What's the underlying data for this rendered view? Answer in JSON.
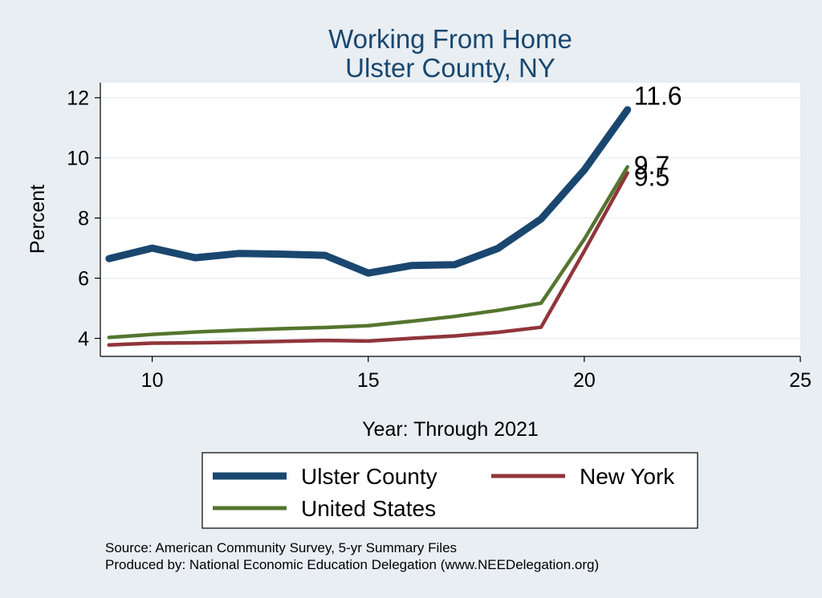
{
  "chart_data": {
    "type": "line",
    "title": "Working From Home",
    "subtitle": "Ulster County, NY",
    "xlabel": "Year: Through 2021",
    "ylabel": "Percent",
    "xlim": [
      8.8,
      25
    ],
    "ylim": [
      3.4,
      12.5
    ],
    "xticks": [
      10,
      15,
      20,
      25
    ],
    "yticks": [
      4,
      6,
      8,
      10,
      12
    ],
    "grid": true,
    "legend_position": "bottom",
    "series": [
      {
        "name": "Ulster County",
        "color": "#1a476f",
        "x": [
          9,
          10,
          11,
          12,
          13,
          14,
          15,
          16,
          17,
          18,
          19,
          20,
          21
        ],
        "y": [
          6.65,
          7.0,
          6.68,
          6.82,
          6.8,
          6.76,
          6.17,
          6.42,
          6.45,
          6.99,
          7.97,
          9.6,
          11.6
        ],
        "end_label": "11.6"
      },
      {
        "name": "New York",
        "color": "#90353b",
        "x": [
          9,
          10,
          11,
          12,
          13,
          14,
          15,
          16,
          17,
          18,
          19,
          20,
          21
        ],
        "y": [
          3.78,
          3.84,
          3.85,
          3.87,
          3.9,
          3.93,
          3.91,
          4.0,
          4.08,
          4.2,
          4.37,
          6.9,
          9.5
        ],
        "end_label": "9.5"
      },
      {
        "name": "United States",
        "color": "#55752f",
        "x": [
          9,
          10,
          11,
          12,
          13,
          14,
          15,
          16,
          17,
          18,
          19,
          20,
          21
        ],
        "y": [
          4.03,
          4.13,
          4.21,
          4.27,
          4.32,
          4.36,
          4.42,
          4.57,
          4.73,
          4.93,
          5.17,
          7.3,
          9.7
        ],
        "end_label": "9.7"
      }
    ],
    "legend_order": [
      "Ulster County",
      "New York",
      "United States"
    ],
    "notes": [
      "Source: American Community Survey, 5-yr Summary Files",
      "Produced by: National Economic Education Delegation (www.NEEDelegation.org)"
    ]
  }
}
